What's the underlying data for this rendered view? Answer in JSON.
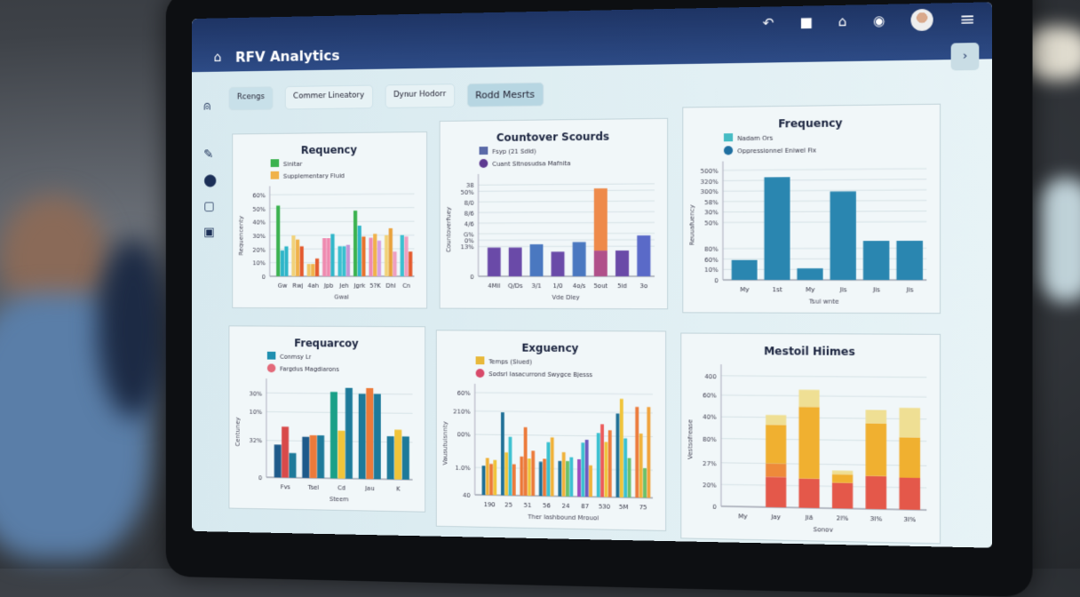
{
  "app": {
    "title": "RFV Analytics",
    "accent": "#2d4b86",
    "collapse_label": "›"
  },
  "header_icons": [
    "back-arrow-icon",
    "bag-icon",
    "home-icon",
    "chat-icon",
    "user-avatar",
    "menu-icon"
  ],
  "sidebar_icons": [
    "bell-icon",
    "pen-icon",
    "location-icon",
    "lock-icon",
    "image-icon"
  ],
  "tabs": [
    {
      "label": "Rcengs",
      "active": false
    },
    {
      "label": "Commer Lineatory",
      "active": false
    },
    {
      "label": "Dynur Hodorr",
      "active": false
    },
    {
      "label": "Rodd Mesrts",
      "active": true
    }
  ],
  "charts": [
    {
      "title": "Requency",
      "type": "bar",
      "mode": "grouped",
      "xlabel": "Gwal",
      "ylabel": "Requencenty",
      "categories": [
        "Gw",
        "Rwj",
        "4ah",
        "Jpb",
        "Jeh",
        "Jgrk",
        "5?K",
        "Dhl",
        "Cn"
      ],
      "ylim": [
        0,
        60
      ],
      "yticks": [
        {
          "v": 0,
          "l": "0"
        },
        {
          "v": 10,
          "l": "10%"
        },
        {
          "v": 20,
          "l": "20%"
        },
        {
          "v": 30,
          "l": "30%"
        },
        {
          "v": 40,
          "l": "40%"
        },
        {
          "v": 50,
          "l": "50%"
        },
        {
          "v": 60,
          "l": "60%"
        }
      ],
      "legend": [
        {
          "label": "Sinitar",
          "color": "#3bb24f"
        },
        {
          "label": "Supplementary Fluid",
          "color": "#f0b24a"
        }
      ],
      "series": [
        {
          "values": [
            52,
            30,
            9,
            28,
            22,
            48,
            28,
            30,
            30
          ],
          "colors": [
            "#3bb24f",
            "#f1d27a",
            "#f0c766",
            "#ef8ab0",
            "#3bc0d0",
            "#3bb24f",
            "#ef8ab0",
            "#f1d27a",
            "#3bc0d0"
          ]
        },
        {
          "values": [
            19,
            27,
            9,
            28,
            22,
            37,
            31,
            35,
            29
          ],
          "colors": [
            "#2fb6c9",
            "#f0b24a",
            "#f0b24a",
            "#ef8ab0",
            "#3bc0d0",
            "#2fb6c9",
            "#f0b24a",
            "#e9a13a",
            "#ee9fc0"
          ]
        },
        {
          "values": [
            22,
            22,
            13,
            31,
            23,
            29,
            26,
            18,
            18
          ],
          "colors": [
            "#2fb6c9",
            "#e45a2e",
            "#e45a2e",
            "#2fb6c9",
            "#c294d4",
            "#e8742f",
            "#d7a0e0",
            "#ee9fc0",
            "#e45a2e"
          ]
        }
      ]
    },
    {
      "title": "Countover Scourds",
      "type": "bar",
      "mode": "stacked",
      "xlabel": "Vde Dley",
      "ylabel": "Countoverfuey",
      "categories": [
        "4Mil",
        "Q/Ds",
        "3/1",
        "1/0",
        "4o/s",
        "5out",
        "5id",
        "3o"
      ],
      "ylim": [
        0,
        44
      ],
      "yticks": [
        {
          "v": 0,
          "l": "0"
        },
        {
          "v": 14,
          "l": "13%"
        },
        {
          "v": 17,
          "l": "0%"
        },
        {
          "v": 20,
          "l": "G%"
        },
        {
          "v": 25,
          "l": "4/6"
        },
        {
          "v": 30,
          "l": "8/6"
        },
        {
          "v": 35,
          "l": "8/0"
        },
        {
          "v": 40,
          "l": "50%"
        },
        {
          "v": 43,
          "l": "38"
        }
      ],
      "legend": [
        {
          "label": "Fsyp (21 Sdld)",
          "color": "#5a6aa8"
        },
        {
          "label": "Cuant Sitnosudsa Mafnita",
          "color": "#5e3a91",
          "round": true
        }
      ],
      "series": [
        {
          "values": [
            13.5,
            13.5,
            15,
            11.5,
            16,
            12,
            12,
            19
          ],
          "colors": [
            "#6a4aa8",
            "#6a4aa8",
            "#4a78c0",
            "#6a4aa8",
            "#4a78c0",
            "#b0508a",
            "#6a4aa8",
            "#5a6ac8"
          ]
        },
        {
          "values": [
            0,
            0,
            0,
            0,
            0,
            29,
            0,
            0
          ],
          "colors": [
            "#ee8a4a",
            "#ee8a4a",
            "#ee8a4a",
            "#ee8a4a",
            "#ee8a4a",
            "#ee8a4a",
            "#ee8a4a",
            "#ee8a4a"
          ]
        }
      ]
    },
    {
      "title": "Frequency",
      "type": "bar",
      "mode": "grouped",
      "xlabel": "Tsul wnte",
      "ylabel": "Reuuafuency",
      "categories": [
        "My",
        "1st",
        "My",
        "Jis",
        "Jis",
        "Jis"
      ],
      "ylim": [
        0,
        100
      ],
      "yticks": [
        {
          "v": 0,
          "l": "0"
        },
        {
          "v": 10,
          "l": "10%"
        },
        {
          "v": 20,
          "l": "60%"
        },
        {
          "v": 30,
          "l": "80%"
        },
        {
          "v": 55,
          "l": "50%"
        },
        {
          "v": 65,
          "l": "30%"
        },
        {
          "v": 75,
          "l": "58%"
        },
        {
          "v": 85,
          "l": "300%"
        },
        {
          "v": 95,
          "l": "320%"
        },
        {
          "v": 105,
          "l": "500%"
        }
      ],
      "legend": [
        {
          "label": "Nadam Ors",
          "color": "#46bcc4"
        },
        {
          "label": "Oppressionnel Eniwel Fix",
          "color": "#1f6fa0",
          "round": true
        }
      ],
      "series": [
        {
          "values": [
            19,
            98,
            11,
            84,
            37,
            37
          ],
          "colors": [
            "#2a86b0",
            "#2a86b0",
            "#2a86b0",
            "#2a86b0",
            "#2a86b0",
            "#2a86b0"
          ]
        }
      ]
    },
    {
      "title": "Frequarcoy",
      "type": "bar",
      "mode": "grouped",
      "xlabel": "Steem",
      "ylabel": "Centuney",
      "categories": [
        "Fvs",
        "Tsel",
        "Cd",
        "Jau",
        "K"
      ],
      "ylim": [
        0,
        110
      ],
      "yticks": [
        {
          "v": 0,
          "l": "0"
        },
        {
          "v": 45,
          "l": "32%"
        },
        {
          "v": 80,
          "l": "10%"
        },
        {
          "v": 103,
          "l": "30%"
        }
      ],
      "legend": [
        {
          "label": "Conmsy Lr",
          "color": "#1f8fb0"
        },
        {
          "label": "Fargdus Magdiarons",
          "color": "#e36a7a",
          "round": true
        }
      ],
      "series": [
        {
          "values": [
            40,
            50,
            105,
            103,
            52
          ],
          "colors": [
            "#1e5a8a",
            "#1e5a8a",
            "#1aa088",
            "#1e7a9a",
            "#1e7a9a"
          ]
        },
        {
          "values": [
            62,
            52,
            58,
            110,
            60
          ],
          "colors": [
            "#d84a4a",
            "#ec7a3a",
            "#f0c43a",
            "#ec7a3a",
            "#f0c43a"
          ]
        },
        {
          "values": [
            30,
            52,
            110,
            103,
            52
          ],
          "colors": [
            "#1e7a9a",
            "#1e7a9a",
            "#1e7a9a",
            "#1e7a9a",
            "#1e7a9a"
          ]
        }
      ]
    },
    {
      "title": "Exguency",
      "type": "bar",
      "mode": "grouped",
      "xlabel": "Ther Iashbound Mrouol",
      "ylabel": "Vausutuisnnty",
      "categories": [
        "190",
        "25",
        "51",
        "56",
        "24",
        "87",
        "530",
        "5M",
        "75"
      ],
      "ylim": [
        0,
        100
      ],
      "yticks": [
        {
          "v": 0,
          "l": "40"
        },
        {
          "v": 28,
          "l": "1.0%"
        },
        {
          "v": 62,
          "l": "00%"
        },
        {
          "v": 86,
          "l": "210%"
        },
        {
          "v": 105,
          "l": "60%"
        }
      ],
      "legend": [
        {
          "label": "Temps (Siued)",
          "color": "#e8b83a"
        },
        {
          "label": "Sodsrl Iasacurrond Swygce Bjesss",
          "color": "#d84a6a",
          "round": true
        }
      ],
      "series": [
        {
          "values": [
            30,
            85,
            40,
            35,
            36,
            38,
            65,
            85,
            92
          ],
          "colors": [
            "#1e6f96",
            "#1e6f96",
            "#ec7a3a",
            "#1e6f96",
            "#1e6f96",
            "#9a4ac0",
            "#3ac0d0",
            "#1e6f96",
            "#ec7a3a"
          ]
        },
        {
          "values": [
            38,
            44,
            70,
            38,
            45,
            55,
            74,
            100,
            65
          ],
          "colors": [
            "#f0b23a",
            "#f0c43a",
            "#ec7a3a",
            "#ec7a3a",
            "#f0b23a",
            "#3ac0d0",
            "#ec5a5a",
            "#f0c43a",
            "#f0b23a"
          ]
        },
        {
          "values": [
            32,
            60,
            38,
            55,
            36,
            58,
            56,
            60,
            30
          ],
          "colors": [
            "#ec7a3a",
            "#3ac0d0",
            "#f0c43a",
            "#3ac0d0",
            "#6ac06a",
            "#6a5ac0",
            "#f0c43a",
            "#3ac0d0",
            "#6ac06a"
          ]
        },
        {
          "values": [
            36,
            32,
            46,
            60,
            40,
            32,
            68,
            40,
            92
          ],
          "colors": [
            "#f0c43a",
            "#ec7a3a",
            "#ec7a3a",
            "#f0b23a",
            "#3ac0d0",
            "#f0b23a",
            "#ec7a3a",
            "#6ac06a",
            "#f0a23a"
          ]
        }
      ]
    },
    {
      "title": "Mestoil Hiimes",
      "type": "bar",
      "mode": "stacked",
      "xlabel": "Sonov",
      "ylabel": "Vestsofrease",
      "categories": [
        "My",
        "Jay",
        "Jiä",
        "2I%",
        "3I%",
        "3I%"
      ],
      "ylim": [
        0,
        110
      ],
      "yticks": [
        {
          "v": 0,
          "l": "0"
        },
        {
          "v": 18,
          "l": "20%"
        },
        {
          "v": 36,
          "l": "27%"
        },
        {
          "v": 56,
          "l": "80%"
        },
        {
          "v": 74,
          "l": "40%"
        },
        {
          "v": 92,
          "l": "60%"
        },
        {
          "v": 108,
          "l": "400"
        }
      ],
      "legend": [],
      "series": [
        {
          "values": [
            0,
            25,
            24,
            21,
            27,
            26
          ],
          "colors": [
            "#e4584a",
            "#e4584a",
            "#e4584a",
            "#e4584a",
            "#e4584a",
            "#e4584a"
          ]
        },
        {
          "values": [
            0,
            11,
            0,
            0,
            0,
            0
          ],
          "colors": [
            "#ee8a3a",
            "#ee8a3a",
            "#ee8a3a",
            "#ee8a3a",
            "#ee8a3a",
            "#ee8a3a"
          ]
        },
        {
          "values": [
            0,
            32,
            59,
            7,
            43,
            33
          ],
          "colors": [
            "#f0b030",
            "#f0b030",
            "#f0b030",
            "#f0b030",
            "#f0b030",
            "#f0b030"
          ]
        },
        {
          "values": [
            0,
            8,
            14,
            3,
            11,
            24
          ],
          "colors": [
            "#efdf94",
            "#efdf94",
            "#efdf94",
            "#efdf94",
            "#efdf94",
            "#efdf94"
          ]
        }
      ]
    }
  ]
}
